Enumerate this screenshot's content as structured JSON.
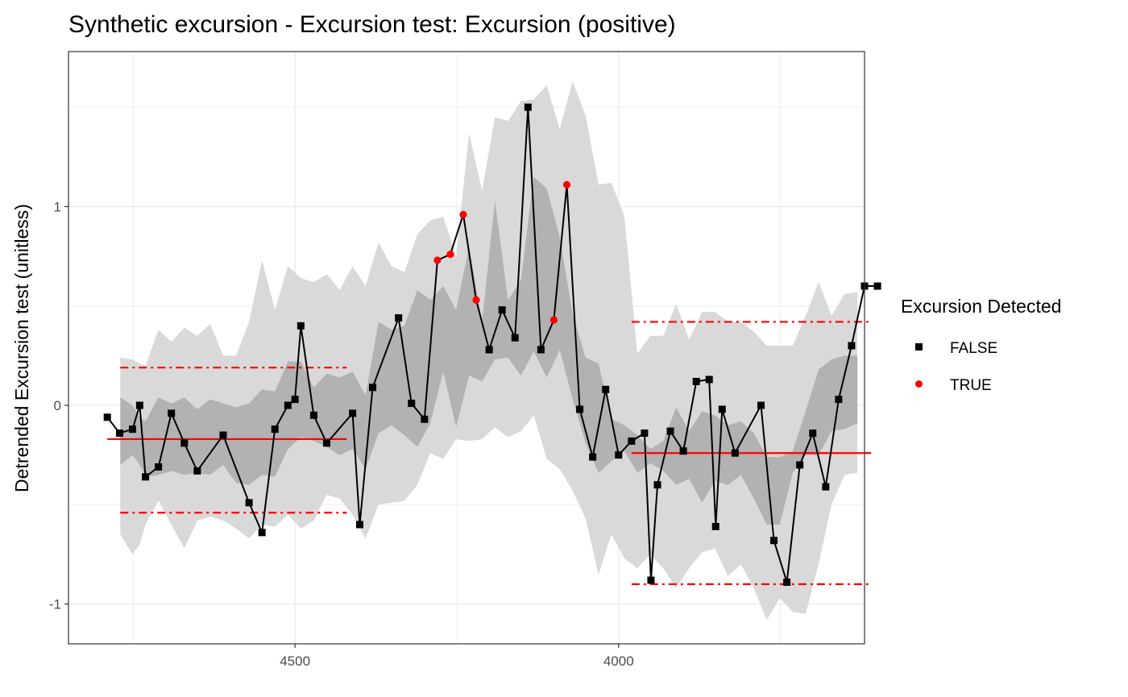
{
  "chart_data": {
    "type": "line",
    "title": "Synthetic excursion - Excursion test: Excursion (positive)",
    "xlabel": "",
    "ylabel": "Detrended Excursion test (unitless)",
    "x_reversed": true,
    "xlim": [
      4850,
      3620
    ],
    "ylim": [
      -1.2,
      1.78
    ],
    "x_ticks": [
      4500,
      4000
    ],
    "x_tick_labels": [
      "4500",
      "4000"
    ],
    "y_ticks": [
      -1,
      0,
      1
    ],
    "y_tick_labels": [
      "-1",
      "0",
      "1"
    ],
    "grid": true,
    "legend": {
      "title": "Excursion Detected",
      "position": "right",
      "entries": [
        {
          "label": "FALSE",
          "shape": "square",
          "color": "#000000"
        },
        {
          "label": "TRUE",
          "shape": "circle",
          "color": "#ff0000"
        }
      ]
    },
    "series": [
      {
        "name": "Detrended Excursion test",
        "color": "#000000",
        "x": [
          4790,
          4771,
          4751,
          4740,
          4731,
          4711,
          4691,
          4671,
          4651,
          4611,
          4571,
          4551,
          4531,
          4511,
          4500,
          4491,
          4471,
          4451,
          4411,
          4400,
          4380,
          4340,
          4320,
          4300,
          4280,
          4260,
          4240,
          4220,
          4200,
          4180,
          4160,
          4140,
          4120,
          4100,
          4080,
          4060,
          4040,
          4020,
          4000,
          3980,
          3960,
          3950,
          3940,
          3920,
          3900,
          3880,
          3860,
          3850,
          3840,
          3820,
          3780,
          3760,
          3740,
          3720,
          3700,
          3680,
          3660,
          3640,
          3620,
          3600
        ],
        "y": [
          -0.06,
          -0.14,
          -0.12,
          0.0,
          -0.36,
          -0.31,
          -0.04,
          -0.19,
          -0.33,
          -0.15,
          -0.49,
          -0.64,
          -0.12,
          0.0,
          0.03,
          0.4,
          -0.05,
          -0.19,
          -0.04,
          -0.6,
          0.09,
          0.44,
          0.01,
          -0.07,
          0.73,
          0.76,
          0.96,
          0.53,
          0.28,
          0.48,
          0.34,
          1.5,
          0.28,
          0.43,
          1.11,
          -0.02,
          -0.26,
          0.08,
          -0.25,
          -0.18,
          -0.14,
          -0.88,
          -0.4,
          -0.13,
          -0.23,
          0.12,
          0.13,
          -0.61,
          -0.02,
          -0.24,
          0.0,
          -0.68,
          -0.89,
          -0.3,
          -0.14,
          -0.41,
          0.03,
          0.3,
          0.6,
          0.6
        ],
        "excursion": [
          false,
          false,
          false,
          false,
          false,
          false,
          false,
          false,
          false,
          false,
          false,
          false,
          false,
          false,
          false,
          false,
          false,
          false,
          false,
          false,
          false,
          false,
          false,
          false,
          true,
          true,
          true,
          true,
          false,
          false,
          false,
          false,
          false,
          true,
          true,
          false,
          false,
          false,
          false,
          false,
          false,
          false,
          false,
          false,
          false,
          false,
          false,
          false,
          false,
          false,
          false,
          false,
          false,
          false,
          false,
          false,
          false,
          false,
          false,
          false
        ]
      }
    ],
    "bands": {
      "x": [
        4770,
        4751,
        4740,
        4731,
        4711,
        4691,
        4671,
        4651,
        4631,
        4611,
        4591,
        4571,
        4551,
        4531,
        4511,
        4491,
        4471,
        4451,
        4431,
        4411,
        4391,
        4371,
        4351,
        4331,
        4311,
        4291,
        4271,
        4251,
        4231,
        4211,
        4191,
        4171,
        4151,
        4131,
        4111,
        4091,
        4071,
        4051,
        4031,
        4011,
        3991,
        3971,
        3951,
        3931,
        3911,
        3891,
        3871,
        3851,
        3831,
        3811,
        3791,
        3771,
        3751,
        3731,
        3711,
        3691,
        3671,
        3651,
        3631
      ],
      "outer_upper": [
        0.24,
        0.23,
        0.21,
        0.2,
        0.38,
        0.32,
        0.39,
        0.35,
        0.41,
        0.25,
        0.25,
        0.42,
        0.73,
        0.48,
        0.7,
        0.64,
        0.62,
        0.66,
        0.58,
        0.7,
        0.6,
        0.82,
        0.7,
        0.67,
        0.86,
        0.93,
        0.95,
        0.75,
        1.37,
        1.08,
        1.45,
        1.43,
        1.53,
        1.54,
        1.61,
        1.39,
        1.63,
        1.46,
        1.11,
        1.12,
        0.95,
        0.26,
        0.35,
        0.35,
        0.51,
        0.33,
        0.47,
        0.47,
        0.42,
        0.42,
        0.37,
        0.3,
        0.3,
        0.3,
        0.45,
        0.62,
        0.45,
        0.56,
        0.57
      ],
      "inner_upper": [
        0.04,
        0.0,
        -0.06,
        -0.08,
        0.04,
        0.01,
        0.04,
        -0.02,
        0.03,
        0.01,
        -0.01,
        0.01,
        0.08,
        0.07,
        0.22,
        0.22,
        0.09,
        0.16,
        0.14,
        0.17,
        0.05,
        0.42,
        0.38,
        0.4,
        0.58,
        0.53,
        0.6,
        0.48,
        0.8,
        0.42,
        1.03,
        0.53,
        0.63,
        1.15,
        1.09,
        0.85,
        0.46,
        0.24,
        0.21,
        -0.07,
        -0.1,
        -0.15,
        -0.22,
        -0.18,
        -0.01,
        -0.13,
        -0.03,
        -0.05,
        -0.1,
        -0.08,
        -0.14,
        -0.26,
        -0.26,
        -0.23,
        -0.03,
        0.18,
        0.23,
        0.25,
        0.25
      ],
      "inner_lower": [
        -0.3,
        -0.25,
        -0.3,
        -0.36,
        -0.35,
        -0.33,
        -0.35,
        -0.34,
        -0.35,
        -0.3,
        -0.39,
        -0.4,
        -0.35,
        -0.36,
        -0.22,
        -0.16,
        -0.18,
        -0.21,
        -0.25,
        -0.22,
        -0.32,
        -0.14,
        -0.1,
        -0.15,
        -0.21,
        -0.09,
        0.17,
        -0.11,
        0.15,
        0.12,
        0.23,
        0.24,
        0.15,
        0.27,
        0.14,
        0.28,
        0.03,
        -0.19,
        -0.34,
        -0.28,
        -0.23,
        -0.34,
        -0.29,
        -0.33,
        -0.4,
        -0.37,
        -0.49,
        -0.38,
        -0.4,
        -0.35,
        -0.47,
        -0.6,
        -0.6,
        -0.34,
        -0.25,
        -0.25,
        -0.13,
        -0.12,
        -0.09
      ],
      "outer_lower": [
        -0.65,
        -0.75,
        -0.7,
        -0.6,
        -0.48,
        -0.6,
        -0.72,
        -0.58,
        -0.56,
        -0.58,
        -0.62,
        -0.67,
        -0.6,
        -0.61,
        -0.55,
        -0.62,
        -0.58,
        -0.45,
        -0.47,
        -0.55,
        -0.67,
        -0.5,
        -0.49,
        -0.48,
        -0.4,
        -0.24,
        -0.27,
        -0.17,
        -0.18,
        -0.17,
        -0.11,
        -0.16,
        -0.13,
        -0.05,
        -0.27,
        -0.32,
        -0.43,
        -0.57,
        -0.85,
        -0.65,
        -0.77,
        -0.82,
        -0.75,
        -0.82,
        -0.92,
        -0.82,
        -0.74,
        -0.72,
        -0.86,
        -0.8,
        -0.92,
        -1.08,
        -0.97,
        -1.04,
        -1.05,
        -0.8,
        -0.5,
        -0.35,
        -0.34
      ]
    },
    "reference_lines": [
      {
        "x_from": 4790,
        "x_to": 4420,
        "y": -0.17,
        "style": "solid",
        "color": "#ff0000"
      },
      {
        "x_from": 4770,
        "x_to": 4420,
        "y": 0.19,
        "style": "dashdot",
        "color": "#ff0000"
      },
      {
        "x_from": 4770,
        "x_to": 4420,
        "y": -0.54,
        "style": "dashdot",
        "color": "#ff0000"
      },
      {
        "x_from": 3980,
        "x_to": 3610,
        "y": -0.24,
        "style": "solid",
        "color": "#ff0000"
      },
      {
        "x_from": 3980,
        "x_to": 3610,
        "y": 0.42,
        "style": "dashdot",
        "color": "#ff0000"
      },
      {
        "x_from": 3980,
        "x_to": 3610,
        "y": -0.9,
        "style": "dashdot",
        "color": "#ff0000"
      }
    ],
    "colors": {
      "outer_band": "#d9d9d9",
      "inner_band": "#b2b2b2",
      "line": "#000000",
      "point_false": "#000000",
      "point_true": "#ff0000",
      "grid": "#ebebeb",
      "reference": "#ff0000"
    }
  }
}
